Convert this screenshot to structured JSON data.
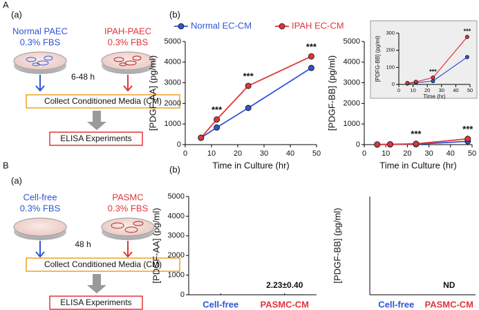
{
  "panels": {
    "A": "A",
    "B": "B"
  },
  "diagrams": [
    {
      "label": "(a)",
      "left": {
        "name": "Normal PAEC",
        "medium": "0.3% FBS"
      },
      "right": {
        "name": "IPAH-PAEC",
        "medium": "0.3% FBS"
      },
      "time": "6-48 h",
      "collect": "Collect Conditioned Media (CM)",
      "assay": "ELISA Experiments"
    },
    {
      "label": "(a)",
      "left": {
        "name": "Cell-free",
        "medium": "0.3% FBS"
      },
      "right": {
        "name": "PASMC",
        "medium": "0.3% FBS"
      },
      "time": "48 h",
      "collect": "Collect Conditioned Media (CM)",
      "assay": "ELISA Experiments"
    }
  ],
  "chart_data": [
    {
      "type": "line",
      "panel_label": "(b)",
      "x": [
        6,
        12,
        24,
        48
      ],
      "series": [
        {
          "name": "Normal EC-CM",
          "color": "#2f55d4",
          "values": [
            330,
            830,
            1780,
            3720
          ]
        },
        {
          "name": "IPAH EC-CM",
          "color": "#e3343c",
          "values": [
            330,
            1220,
            2850,
            4280
          ]
        }
      ],
      "xlim": [
        0,
        50
      ],
      "xticks": [
        0,
        10,
        20,
        30,
        40,
        50
      ],
      "ylim": [
        0,
        5000
      ],
      "yticks": [
        0,
        1000,
        2000,
        3000,
        4000,
        5000
      ],
      "xlabel": "Time in Culture (hr)",
      "ylabel": "[PDGF-AA] (pg/ml)",
      "annotations": [
        {
          "x": 12,
          "text": "***"
        },
        {
          "x": 24,
          "text": "***"
        },
        {
          "x": 48,
          "text": "***"
        }
      ],
      "legend": "top"
    },
    {
      "type": "line",
      "x": [
        6,
        12,
        24,
        48
      ],
      "series": [
        {
          "color": "#2f55d4",
          "values": [
            5,
            10,
            20,
            160
          ]
        },
        {
          "color": "#e3343c",
          "values": [
            8,
            15,
            40,
            280
          ]
        }
      ],
      "xlim": [
        0,
        50
      ],
      "xticks": [
        0,
        10,
        20,
        30,
        40,
        50
      ],
      "ylim": [
        0,
        5000
      ],
      "yticks": [
        0,
        1000,
        2000,
        3000,
        4000,
        5000
      ],
      "xlabel": "Time in Culture (hr)",
      "ylabel": "[PDGF-BB] (pg/ml)",
      "annotations": [
        {
          "x": 24,
          "text": "***"
        },
        {
          "x": 48,
          "text": "***"
        }
      ]
    },
    {
      "type": "line",
      "x": [
        6,
        12,
        24,
        48
      ],
      "series": [
        {
          "color": "#2f55d4",
          "values": [
            5,
            10,
            20,
            160
          ]
        },
        {
          "color": "#e3343c",
          "values": [
            8,
            15,
            40,
            278
          ]
        }
      ],
      "xlim": [
        0,
        50
      ],
      "xticks": [
        0,
        10,
        20,
        30,
        40,
        50
      ],
      "ylim": [
        0,
        300
      ],
      "yticks": [
        0,
        100,
        200,
        300
      ],
      "xlabel": "Time (hr)",
      "ylabel": "[PDFG-BB] (pg/ml)",
      "annotations": [
        {
          "x": 24,
          "text": "***"
        },
        {
          "x": 48,
          "text": "***"
        }
      ]
    },
    {
      "type": "bar",
      "panel_label": "(b)",
      "categories": [
        "Cell-free",
        "PASMC-CM"
      ],
      "category_colors": [
        "#2f55d4",
        "#e3343c"
      ],
      "values": [
        0,
        2.23
      ],
      "errors": [
        0,
        0.4
      ],
      "value_labels": [
        null,
        "2.23±0.40"
      ],
      "ylim": [
        0,
        5000
      ],
      "yticks": [
        0,
        1000,
        2000,
        3000,
        4000,
        5000
      ],
      "ylabel": "[PDGF-AA] (pg/ml)"
    },
    {
      "type": "bar",
      "categories": [
        "Cell-free",
        "PASMC-CM"
      ],
      "category_colors": [
        "#2f55d4",
        "#e3343c"
      ],
      "values": [
        0,
        null
      ],
      "value_labels": [
        null,
        "ND"
      ],
      "ylabel": "[PDGF-BB] (pg/ml)"
    }
  ]
}
